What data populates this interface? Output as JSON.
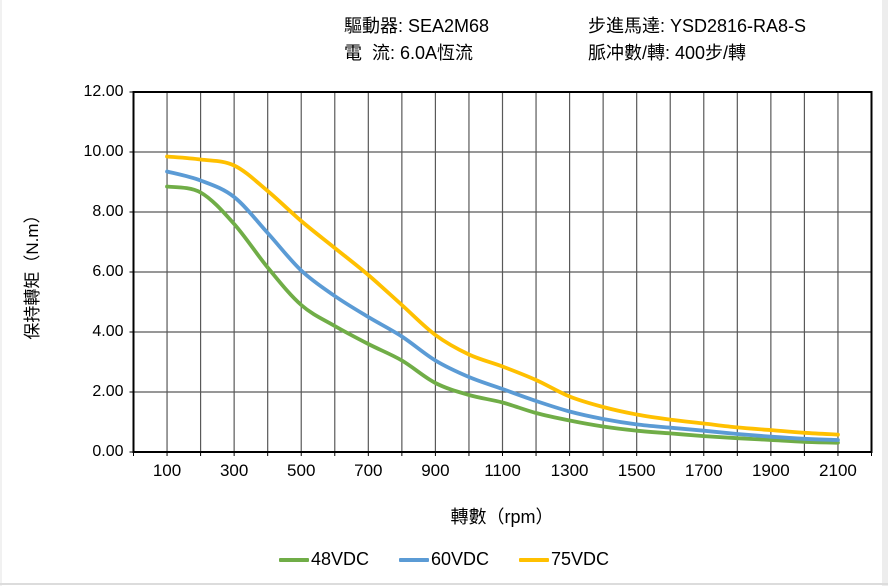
{
  "header": {
    "rows": [
      {
        "left": "驅動器: SEA2M68",
        "right": "步進馬達: YSD2816-RA8-S"
      },
      {
        "left": "電  流: 6.0A恆流",
        "right": "脈冲數/轉: 400步/轉"
      }
    ]
  },
  "chart_data": {
    "type": "line",
    "title": "",
    "xlabel": "轉數（rpm）",
    "ylabel": "保持轉矩（N.m）",
    "xlim": [
      0,
      2200
    ],
    "ylim": [
      0,
      12
    ],
    "x_grid_interval": 100,
    "y_grid_interval": 2,
    "grid": true,
    "legend_position": "bottom",
    "x_ticks": [
      100,
      300,
      500,
      700,
      900,
      1100,
      1300,
      1500,
      1700,
      1900,
      2100
    ],
    "y_ticks": [
      "12.00",
      "10.00",
      "8.00",
      "6.00",
      "4.00",
      "2.00",
      "0.00"
    ],
    "x": [
      100,
      200,
      300,
      400,
      500,
      600,
      700,
      800,
      900,
      1000,
      1100,
      1200,
      1300,
      1400,
      1500,
      1600,
      1700,
      1800,
      1900,
      2000,
      2100
    ],
    "series": [
      {
        "name": "48VDC",
        "color": "#70AD47",
        "values": [
          8.85,
          8.65,
          7.6,
          6.15,
          4.9,
          4.2,
          3.6,
          3.05,
          2.3,
          1.9,
          1.65,
          1.3,
          1.05,
          0.85,
          0.71,
          0.62,
          0.53,
          0.46,
          0.4,
          0.34,
          0.31
        ]
      },
      {
        "name": "60VDC",
        "color": "#5B9BD5",
        "values": [
          9.35,
          9.05,
          8.5,
          7.3,
          6.05,
          5.2,
          4.5,
          3.85,
          3.05,
          2.5,
          2.1,
          1.7,
          1.35,
          1.1,
          0.92,
          0.81,
          0.71,
          0.6,
          0.51,
          0.44,
          0.4
        ]
      },
      {
        "name": "75VDC",
        "color": "#FFC000",
        "values": [
          9.85,
          9.75,
          9.55,
          8.7,
          7.7,
          6.8,
          5.9,
          4.9,
          3.9,
          3.25,
          2.85,
          2.4,
          1.85,
          1.5,
          1.25,
          1.08,
          0.95,
          0.82,
          0.73,
          0.64,
          0.58
        ]
      }
    ],
    "colors": {
      "grid": "#595959",
      "axis": "#000000"
    }
  }
}
